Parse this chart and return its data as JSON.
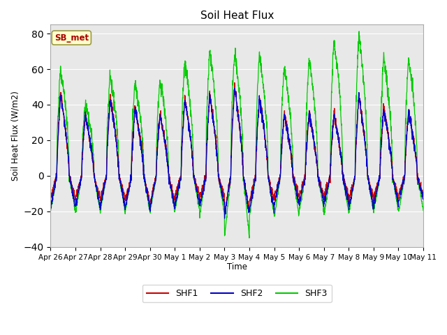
{
  "title": "Soil Heat Flux",
  "ylabel": "Soil Heat Flux (W/m2)",
  "xlabel": "Time",
  "ylim": [
    -40,
    85
  ],
  "yticks": [
    -40,
    -20,
    0,
    20,
    40,
    60,
    80
  ],
  "plot_bg_color": "#e8e8e8",
  "shf1_color": "#cc0000",
  "shf2_color": "#0000cc",
  "shf3_color": "#00cc00",
  "legend_label1": "SHF1",
  "legend_label2": "SHF2",
  "legend_label3": "SHF3",
  "annotation_text": "SB_met",
  "annotation_color": "#aa0000",
  "annotation_bg": "#ffffcc",
  "n_days": 15,
  "points_per_day": 144,
  "day_amps1": [
    47,
    34,
    45,
    38,
    35,
    44,
    46,
    51,
    44,
    35,
    35,
    35,
    45,
    38,
    37
  ],
  "day_amps2": [
    46,
    34,
    43,
    38,
    34,
    43,
    45,
    50,
    44,
    35,
    35,
    34,
    45,
    37,
    36
  ],
  "day_amps3": [
    60,
    41,
    57,
    52,
    54,
    64,
    71,
    70,
    69,
    62,
    66,
    77,
    79,
    67,
    66
  ],
  "night_vals1": [
    -12,
    -13,
    -13,
    -15,
    -15,
    -12,
    -12,
    -20,
    -14,
    -12,
    -12,
    -12,
    -13,
    -12,
    -11
  ],
  "night_vals2": [
    -17,
    -17,
    -17,
    -18,
    -18,
    -16,
    -17,
    -22,
    -20,
    -16,
    -16,
    -16,
    -18,
    -16,
    -14
  ],
  "night_vals3": [
    -20,
    -21,
    -20,
    -20,
    -20,
    -20,
    -22,
    -35,
    -23,
    -23,
    -20,
    -21,
    -21,
    -20,
    -20
  ],
  "tick_labels": [
    "Apr 26",
    "Apr 27",
    "Apr 28",
    "Apr 29",
    "Apr 30",
    "May 1",
    "May 2",
    "May 3",
    "May 4",
    "May 5",
    "May 6",
    "May 7",
    "May 8",
    "May 9",
    "May 10",
    "May 11"
  ]
}
